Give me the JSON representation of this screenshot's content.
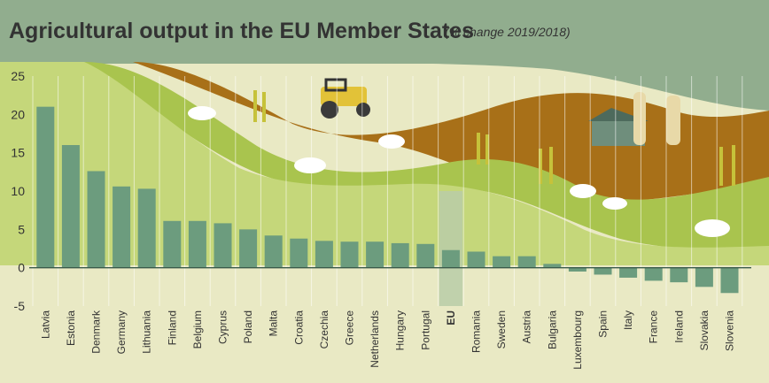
{
  "colors": {
    "header_bg": "#91ad8e",
    "plot_bg": "#e9e9c4",
    "hill_green": "#a9c44e",
    "hill_light": "#c5d77a",
    "hill_brown": "#a87018",
    "bar": "#6c9c7e",
    "eu_highlight": "#b8cca8",
    "zero_line": "#3a5a4a"
  },
  "chart_data": {
    "type": "bar",
    "title": "Agricultural output in the EU Member States",
    "subtitle": "(% change 2019/2018)",
    "categories": [
      "Latvia",
      "Estonia",
      "Denmark",
      "Germany",
      "Lithuania",
      "Finland",
      "Belgium",
      "Cyprus",
      "Poland",
      "Malta",
      "Croatia",
      "Czechia",
      "Greece",
      "Netherlands",
      "Hungary",
      "Portugal",
      "EU",
      "Romania",
      "Sweden",
      "Austria",
      "Bulgaria",
      "Luxembourg",
      "Spain",
      "Italy",
      "France",
      "Ireland",
      "Slovakia",
      "Slovenia"
    ],
    "values": [
      21.0,
      16.0,
      12.6,
      10.6,
      10.3,
      6.1,
      6.1,
      5.8,
      5.0,
      4.2,
      3.8,
      3.5,
      3.4,
      3.4,
      3.2,
      3.1,
      2.3,
      2.1,
      1.5,
      1.5,
      0.5,
      -0.5,
      -0.9,
      -1.3,
      -1.7,
      -1.9,
      -2.5,
      -3.3
    ],
    "highlight_category": "EU",
    "ylim": [
      -5,
      25
    ],
    "yticks": [
      "25",
      "20",
      "15",
      "10",
      "5",
      "0",
      "-5"
    ],
    "xlabel": "",
    "ylabel": "",
    "grid": "vertical"
  }
}
